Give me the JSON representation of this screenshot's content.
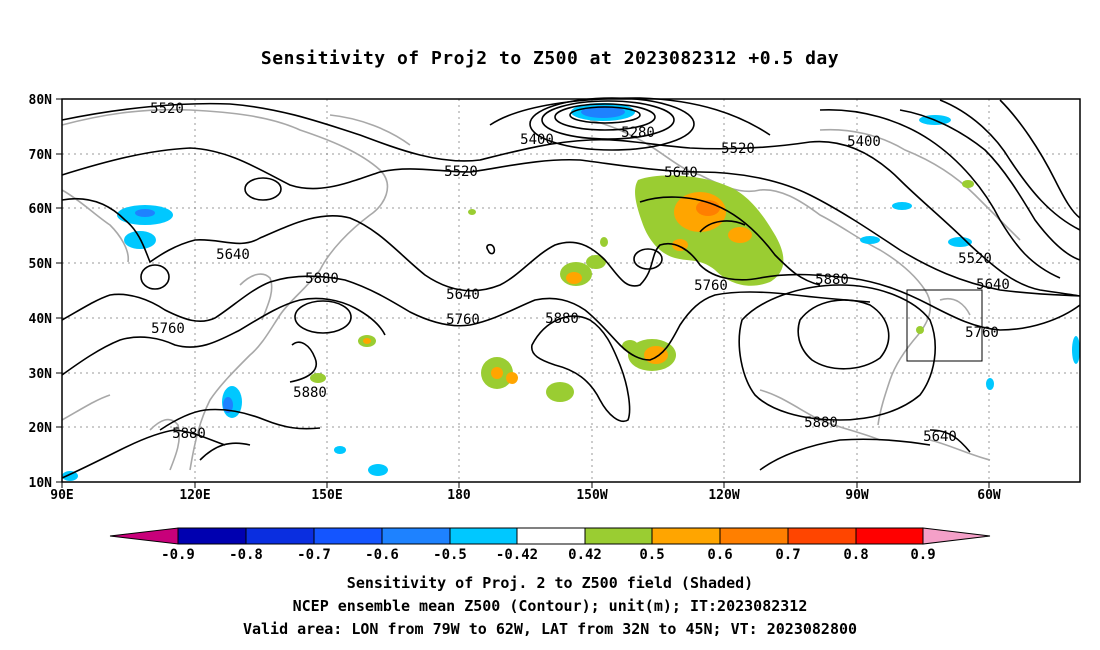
{
  "title": "Sensitivity of Proj2 to Z500 at 2023082312 +0.5 day",
  "lat_ticks": [
    "80N",
    "70N",
    "60N",
    "50N",
    "40N",
    "30N",
    "20N",
    "10N"
  ],
  "lon_ticks": [
    "90E",
    "120E",
    "150E",
    "180",
    "150W",
    "120W",
    "90W",
    "60W"
  ],
  "contour_labels": [
    "5520",
    "5400",
    "5280",
    "5520",
    "5400",
    "5520",
    "5640",
    "5640",
    "5640",
    "5880",
    "5760",
    "5880",
    "5640",
    "5760",
    "5880",
    "5760",
    "5880",
    "5520",
    "5640",
    "5760",
    "5880",
    "5880"
  ],
  "colorbar": {
    "labels": [
      "-0.9",
      "-0.8",
      "-0.7",
      "-0.6",
      "-0.5",
      "-0.42",
      "0.42",
      "0.5",
      "0.6",
      "0.7",
      "0.8",
      "0.9"
    ],
    "colors": [
      "#c8007a",
      "#0000b0",
      "#0a2ee0",
      "#1455ff",
      "#1e82ff",
      "#00c8ff",
      "#ffffff",
      "#9acd32",
      "#ffa500",
      "#ff7f00",
      "#ff4500",
      "#ff0000",
      "#f4a0c8"
    ]
  },
  "footer": {
    "line1": "Sensitivity of Proj. 2 to Z500 field (Shaded)",
    "line2": "NCEP ensemble mean Z500 (Contour); unit(m); IT:2023082312",
    "line3": "Valid area: LON from 79W to 62W, LAT from 32N to 45N; VT: 2023082800"
  }
}
